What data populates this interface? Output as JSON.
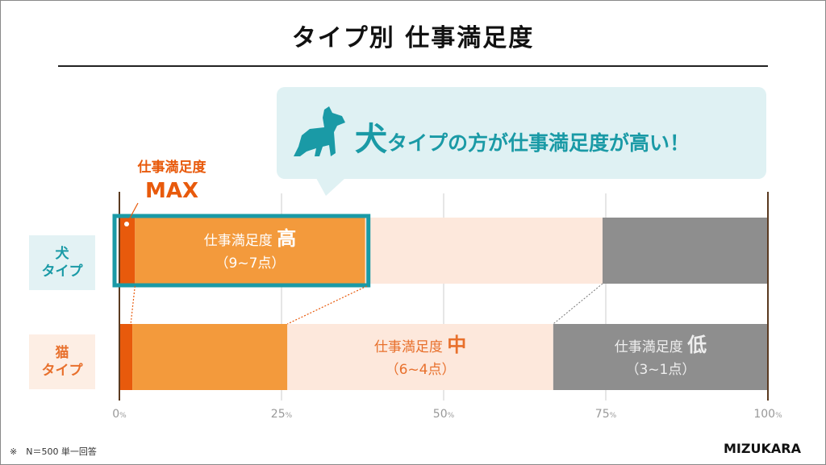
{
  "title": "タイプ別 仕事満足度",
  "callout": {
    "big": "犬",
    "text": "タイプの方が仕事満足度が高い！",
    "icon": "dog-icon"
  },
  "max_label": {
    "line1": "仕事満足度",
    "line2": "MAX"
  },
  "colors": {
    "max": "#e85a0c",
    "high": "#f39a3c",
    "mid": "#fde8dc",
    "low": "#8e8e8e",
    "teal": "#1a9aa6",
    "dog_bg": "#e3f2f4",
    "cat_bg": "#fdeee4"
  },
  "chart_data": {
    "type": "bar",
    "orientation": "horizontal-stacked-100",
    "categories": [
      "犬タイプ",
      "猫タイプ"
    ],
    "category_labels": [
      {
        "line1": "犬",
        "line2": "タイプ"
      },
      {
        "line1": "猫",
        "line2": "タイプ"
      }
    ],
    "series": [
      {
        "name": "仕事満足度MAX",
        "values": [
          2.4,
          2.0
        ]
      },
      {
        "name": "仕事満足度 高（9~7点）",
        "values": [
          35.5,
          23.9
        ]
      },
      {
        "name": "仕事満足度 中（6~4点）",
        "values": [
          36.6,
          41.0
        ]
      },
      {
        "name": "仕事満足度 低（3~1点）",
        "values": [
          25.5,
          33.1
        ]
      }
    ],
    "segment_labels": {
      "high": {
        "text": "仕事満足度",
        "level": "高",
        "range": "（9~7点）"
      },
      "mid": {
        "text": "仕事満足度",
        "level": "中",
        "range": "（6~4点）"
      },
      "low": {
        "text": "仕事満足度",
        "level": "低",
        "range": "（3~1点）"
      }
    },
    "xticks": [
      {
        "v": 0,
        "label": "0",
        "unit": "%"
      },
      {
        "v": 25,
        "label": "25",
        "unit": "%"
      },
      {
        "v": 50,
        "label": "50",
        "unit": "%"
      },
      {
        "v": 75,
        "label": "75",
        "unit": "%"
      },
      {
        "v": 100,
        "label": "100",
        "unit": "%"
      }
    ],
    "xlim": [
      0,
      100
    ],
    "grid": true
  },
  "footnote": "※　N＝500 単一回答",
  "logo": "MIZUKARA"
}
